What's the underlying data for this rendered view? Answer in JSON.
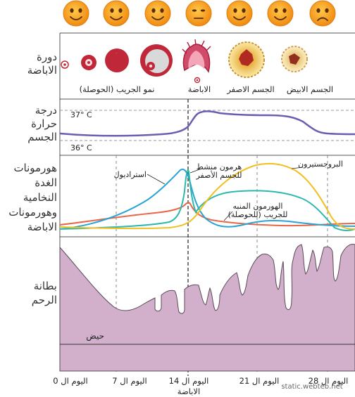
{
  "rows": {
    "ovulation_cycle": "دورة\nالاباضة",
    "body_temperature": "درجة\nحرارة\nالجسم",
    "hormones": "هورمونات\nالغدة\nالنخامية\nوهورمونات\nالاباضة",
    "endometrium": "بطانة\nالرحم"
  },
  "faces": [
    "happy",
    "happy",
    "happy",
    "neutral",
    "happy",
    "happy",
    "sad"
  ],
  "cycle_labels": {
    "follicle_growth": "نمو الجريب (الحوصلة)",
    "ovulation": "الاباضة",
    "corpus_luteum": "الجسم الاصفر",
    "corpus_albicans": "الجسم الابيض"
  },
  "temperature": {
    "high": "37° C",
    "low": "36° C"
  },
  "hormone_labels": {
    "estradiol": "استراديول",
    "lh": "هرمون منشط\nللجسم الأصفر",
    "progesterone": "البروجستيرون",
    "fsh": "الهورمون المنبه\nللجريب (للحوصلة)"
  },
  "menstruation": "حيض",
  "days": [
    "اليوم ال 0",
    "اليوم ال 7",
    "اليوم ال 14",
    "اليوم ال 21",
    "اليوم ال 28"
  ],
  "ovulation_day_label": "الاباضة",
  "watermark": "static.webteb.net",
  "colors": {
    "grid": "#6a6a6a",
    "temperature": "#6b5eb0",
    "estradiol": "#2aa3d6",
    "lh": "#2eb8ad",
    "progesterone": "#f0c020",
    "fsh": "#e8664a",
    "endometrium": "#d2b0cc",
    "follicle": "#c0283a",
    "face": "#f7941d"
  }
}
